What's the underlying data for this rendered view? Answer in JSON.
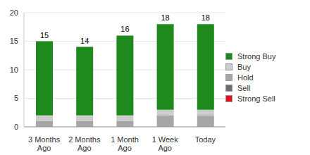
{
  "chart_data": {
    "type": "bar",
    "stacked": true,
    "categories": [
      "3 Months Ago",
      "2 Months Ago",
      "1 Month Ago",
      "1 Week Ago",
      "Today"
    ],
    "series": [
      {
        "name": "Strong Buy",
        "color": "#1e8a1e",
        "values": [
          13,
          12,
          14,
          15,
          15
        ]
      },
      {
        "name": "Buy",
        "color": "#cccccc",
        "values": [
          1,
          1,
          1,
          1,
          1
        ]
      },
      {
        "name": "Hold",
        "color": "#a6a6a6",
        "values": [
          1,
          1,
          1,
          2,
          2
        ]
      },
      {
        "name": "Sell",
        "color": "#6e6e6e",
        "values": [
          0,
          0,
          0,
          0,
          0
        ]
      },
      {
        "name": "Strong Sell",
        "color": "#e3101a",
        "values": [
          0,
          0,
          0,
          0,
          0
        ]
      }
    ],
    "totals": [
      15,
      14,
      16,
      18,
      18
    ],
    "ylim": [
      0,
      20
    ],
    "yticks": [
      0,
      5,
      10,
      15,
      20
    ],
    "grid": true,
    "legend": "right"
  }
}
